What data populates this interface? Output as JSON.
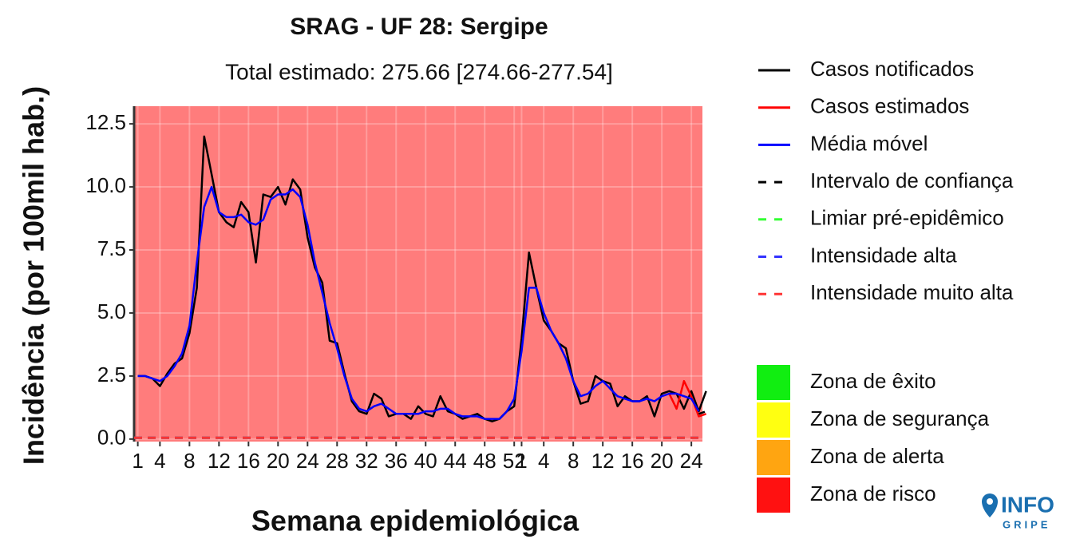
{
  "chart_data": {
    "type": "line",
    "title": "SRAG - UF 28: Sergipe",
    "subtitle": "Total estimado: 275.66 [274.66-277.54]",
    "x_label": "Semana epidemiológica",
    "y_label": "Incidência (por 100mil hab.)",
    "x": [
      1,
      2,
      3,
      4,
      5,
      6,
      7,
      8,
      9,
      10,
      11,
      12,
      13,
      14,
      15,
      16,
      17,
      18,
      19,
      20,
      21,
      22,
      23,
      24,
      25,
      26,
      27,
      28,
      29,
      30,
      31,
      32,
      33,
      34,
      35,
      36,
      37,
      38,
      39,
      40,
      41,
      42,
      43,
      44,
      45,
      46,
      47,
      48,
      49,
      50,
      51,
      52,
      53,
      54,
      55,
      56,
      57,
      58,
      59,
      60,
      61,
      62,
      63,
      64,
      65,
      66,
      67,
      68,
      69,
      70,
      71,
      72,
      73,
      74,
      75,
      76,
      77,
      78
    ],
    "series": [
      {
        "name": "Casos notificados",
        "color": "#000000",
        "dash": false,
        "values": [
          2.5,
          2.5,
          2.4,
          2.1,
          2.6,
          3.0,
          3.2,
          4.2,
          6.0,
          12.0,
          10.5,
          9.0,
          8.6,
          8.4,
          9.4,
          9.0,
          7.0,
          9.7,
          9.6,
          10.0,
          9.3,
          10.3,
          9.9,
          8.0,
          6.8,
          6.2,
          3.9,
          3.8,
          2.6,
          1.5,
          1.1,
          1.0,
          1.8,
          1.6,
          0.9,
          1.0,
          1.0,
          0.8,
          1.3,
          1.0,
          0.9,
          1.7,
          1.1,
          1.0,
          0.8,
          0.9,
          1.0,
          0.8,
          0.7,
          0.8,
          1.1,
          1.3,
          4.0,
          7.4,
          6.0,
          4.7,
          4.3,
          3.8,
          3.6,
          2.3,
          1.4,
          1.5,
          2.5,
          2.3,
          2.2,
          1.3,
          1.7,
          1.5,
          1.5,
          1.7,
          0.9,
          1.8,
          1.9,
          1.8,
          1.2,
          1.9,
          1.1,
          1.9
        ]
      },
      {
        "name": "Casos estimados",
        "color": "#ff0000",
        "dash": false,
        "values": [
          null,
          null,
          null,
          null,
          null,
          null,
          null,
          null,
          null,
          null,
          null,
          null,
          null,
          null,
          null,
          null,
          null,
          null,
          null,
          null,
          null,
          null,
          null,
          null,
          null,
          null,
          null,
          null,
          null,
          null,
          null,
          null,
          null,
          null,
          null,
          null,
          null,
          null,
          null,
          null,
          null,
          null,
          null,
          null,
          null,
          null,
          null,
          null,
          null,
          null,
          null,
          null,
          null,
          null,
          null,
          null,
          null,
          null,
          null,
          null,
          null,
          null,
          null,
          null,
          null,
          null,
          null,
          null,
          null,
          null,
          null,
          null,
          1.8,
          1.2,
          2.3,
          1.7,
          0.9,
          1.0
        ]
      },
      {
        "name": "Média móvel",
        "color": "#0000ff",
        "dash": false,
        "values": [
          2.5,
          2.5,
          2.4,
          2.3,
          2.5,
          2.9,
          3.4,
          4.5,
          7.0,
          9.2,
          10.0,
          9.0,
          8.8,
          8.8,
          8.9,
          8.6,
          8.5,
          8.7,
          9.5,
          9.7,
          9.7,
          9.9,
          9.6,
          8.5,
          7.0,
          5.8,
          4.6,
          3.6,
          2.5,
          1.6,
          1.2,
          1.1,
          1.3,
          1.4,
          1.2,
          1.0,
          1.0,
          1.0,
          1.0,
          1.1,
          1.1,
          1.2,
          1.2,
          1.0,
          0.9,
          0.9,
          0.9,
          0.8,
          0.8,
          0.8,
          1.1,
          1.6,
          3.5,
          6.0,
          6.0,
          5.0,
          4.3,
          3.8,
          3.2,
          2.3,
          1.7,
          1.8,
          2.1,
          2.3,
          2.0,
          1.7,
          1.6,
          1.5,
          1.5,
          1.6,
          1.5,
          1.7,
          1.8,
          1.8,
          1.7,
          1.6,
          1.1,
          null
        ]
      },
      {
        "name": "Intervalo de confiança",
        "color": "#000000",
        "dash": true,
        "values": [
          null,
          null,
          null,
          null,
          null,
          null,
          null,
          null,
          null,
          null,
          null,
          null,
          null,
          null,
          null,
          null,
          null,
          null,
          null,
          null,
          null,
          null,
          null,
          null,
          null,
          null,
          null,
          null,
          null,
          null,
          null,
          null,
          null,
          null,
          null,
          null,
          null,
          null,
          null,
          null,
          null,
          null,
          null,
          null,
          null,
          null,
          null,
          null,
          null,
          null,
          null,
          null,
          null,
          null,
          null,
          null,
          null,
          null,
          null,
          null,
          null,
          null,
          null,
          null,
          null,
          null,
          null,
          null,
          null,
          null,
          null,
          null,
          null,
          null,
          null,
          null,
          1.0,
          1.1
        ]
      }
    ],
    "thresholds": [
      {
        "name": "Limiar pré-epidêmico",
        "color": "#33ff33",
        "value": 0.05
      },
      {
        "name": "Intensidade alta",
        "color": "#3333ff",
        "value": 0.05
      },
      {
        "name": "Intensidade muito alta",
        "color": "#ff3333",
        "value": 0.05
      }
    ],
    "zones": [
      {
        "name": "Zona de êxito",
        "color": "#11ee11"
      },
      {
        "name": "Zona de segurança",
        "color": "#ffff11"
      },
      {
        "name": "Zona de alerta",
        "color": "#ffa511"
      },
      {
        "name": "Zona de risco",
        "color": "#ff1111"
      }
    ],
    "background_zone": 3,
    "xlim": [
      0.5,
      77.5
    ],
    "ylim": [
      -0.1,
      13.2
    ],
    "yticks": [
      {
        "value": 0,
        "label": "0.0"
      },
      2.5,
      {
        "value": 5,
        "label": "5.0"
      },
      7.5,
      {
        "value": 10,
        "label": "10.0"
      },
      12.5
    ],
    "xticks": [
      1,
      4,
      8,
      12,
      16,
      20,
      24,
      28,
      32,
      36,
      40,
      44,
      48,
      52,
      {
        "value": 53,
        "label": "1"
      },
      {
        "value": 56,
        "label": "4"
      },
      {
        "value": 60,
        "label": "8"
      },
      {
        "value": 64,
        "label": "12"
      },
      {
        "value": 68,
        "label": "16"
      },
      {
        "value": 72,
        "label": "20"
      },
      {
        "value": 76,
        "label": "24"
      }
    ],
    "grid": true,
    "logo": "INFO",
    "logo_sub": "GRIPE"
  }
}
